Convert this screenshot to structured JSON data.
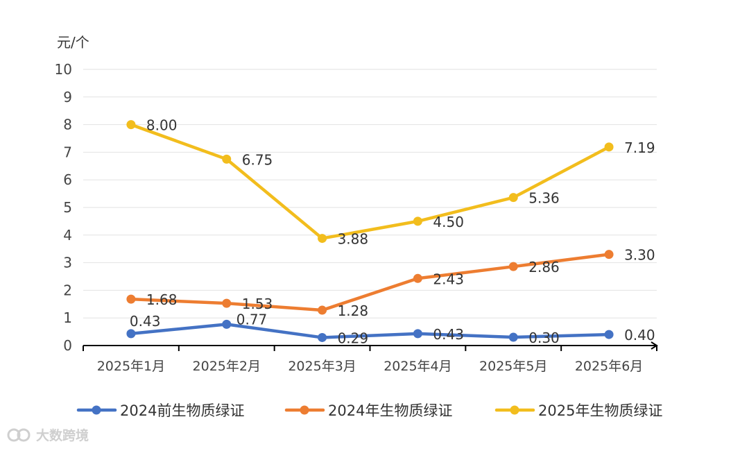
{
  "chart_data": {
    "type": "line",
    "unit_label": "元/个",
    "categories": [
      "2025年1月",
      "2025年2月",
      "2025年3月",
      "2025年4月",
      "2025年5月",
      "2025年6月"
    ],
    "ylim": [
      0,
      10
    ],
    "yticks": [
      "0",
      "1",
      "2",
      "3",
      "4",
      "5",
      "6",
      "7",
      "8",
      "9",
      "10"
    ],
    "grid": true,
    "legend_position": "bottom",
    "series": [
      {
        "name": "2024前生物质绿证",
        "color": "#4472c4",
        "values": [
          0.43,
          0.77,
          0.29,
          0.43,
          0.3,
          0.4
        ],
        "labels": [
          "0.43",
          "0.77",
          "0.29",
          "0.43",
          "0.30",
          "0.40"
        ]
      },
      {
        "name": "2024年生物质绿证",
        "color": "#ed7d31",
        "values": [
          1.68,
          1.53,
          1.28,
          2.43,
          2.86,
          3.3
        ],
        "labels": [
          "1.68",
          "1.53",
          "1.28",
          "2.43",
          "2.86",
          "3.30"
        ]
      },
      {
        "name": "2025年生物质绿证",
        "color": "#f2bd1d",
        "values": [
          8.0,
          6.75,
          3.88,
          4.5,
          5.36,
          7.19
        ],
        "labels": [
          "8.00",
          "6.75",
          "3.88",
          "4.50",
          "5.36",
          "7.19"
        ]
      }
    ]
  },
  "watermark": {
    "text": "大数跨境"
  }
}
